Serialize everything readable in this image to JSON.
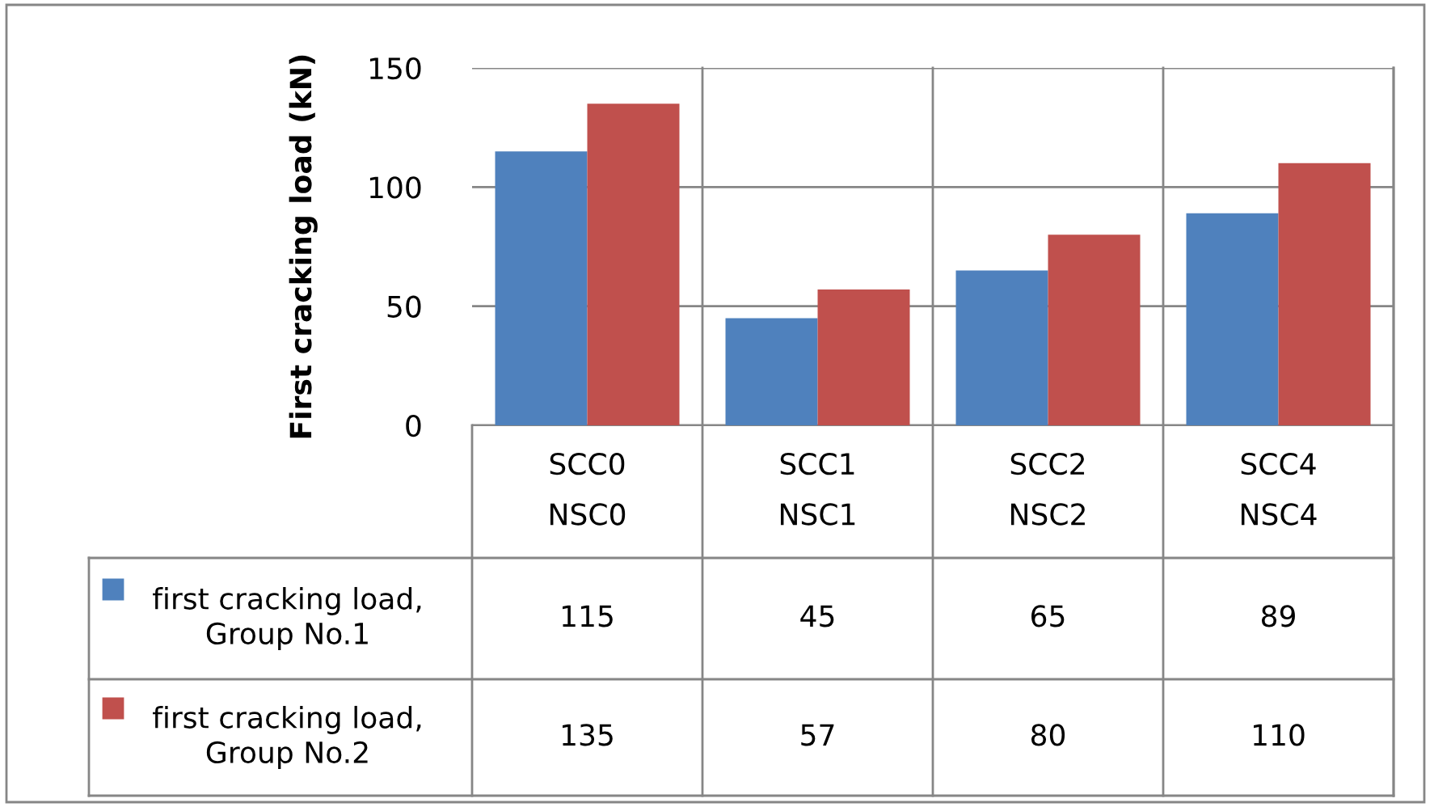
{
  "chart_data": {
    "type": "bar",
    "ylabel": "First cracking load (kN)",
    "categories": [
      "SCC0\nNSC0",
      "SCC1\nNSC1",
      "SCC2\nNSC2",
      "SCC4\nNSC4"
    ],
    "series": [
      {
        "name": "first cracking load, Group No.1",
        "color": "#4f81bd",
        "values": [
          115,
          45,
          65,
          89
        ]
      },
      {
        "name": "first cracking load, Group No.2",
        "color": "#c0504d",
        "values": [
          135,
          57,
          80,
          110
        ]
      }
    ],
    "ylim": [
      0,
      150
    ],
    "yticks": [
      0,
      50,
      100,
      150
    ],
    "grid": "y",
    "legend": "bottom",
    "data_labels": true
  }
}
